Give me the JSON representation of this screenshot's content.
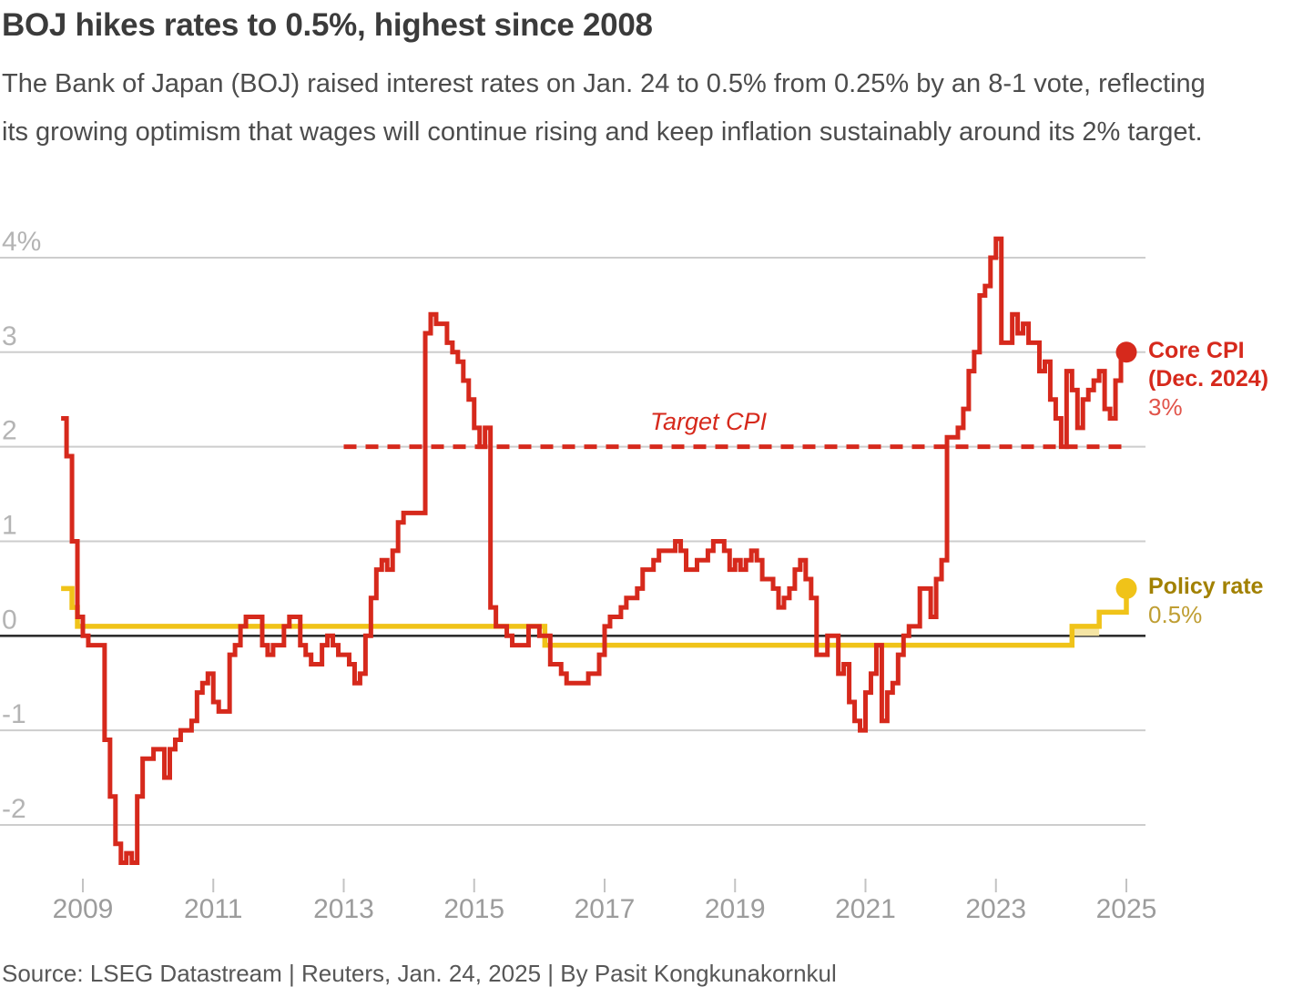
{
  "page": {
    "title": "BOJ hikes rates to 0.5%, highest since 2008",
    "subtitle": "The Bank of Japan (BOJ) raised interest rates on Jan. 24 to 0.5% from 0.25% by an 8-1 vote, reflecting its growing optimism that wages will continue rising and keep inflation sustainably around its 2% target.",
    "source": "Source: LSEG Datastream | Reuters, Jan. 24, 2025 | By Pasit Kongkunakornkul"
  },
  "annotations": {
    "target": {
      "label": "Target CPI"
    },
    "core_cpi": {
      "line1": "Core CPI",
      "line2": "(Dec. 2024)",
      "value": "3%"
    },
    "policy": {
      "line1": "Policy rate",
      "value": "0.5%"
    }
  },
  "colors": {
    "cpi_red": "#d6291c",
    "cpi_red_light": "#e15349",
    "policy_yellow": "#f0c319",
    "policy_band": "#f5e5a4",
    "gold_dark": "#a28100",
    "gold_light": "#bf9e33",
    "grid_line": "#cdcdcd",
    "zero_line": "#2e2e2e",
    "axis_label": "#b4b4b4",
    "x_axis_label": "#9c9c9c",
    "tick_mark": "#c3c3c3"
  },
  "chart_data": {
    "type": "line",
    "title": "BOJ hikes rates to 0.5%, highest since 2008",
    "ylabel": "percent",
    "ylim": [
      -2.6,
      4.3
    ],
    "grid": true,
    "legend_position": "end-of-line annotations",
    "x_axis": {
      "ticks": [
        2009,
        2011,
        2013,
        2015,
        2017,
        2019,
        2021,
        2023,
        2025
      ]
    },
    "y_axis": {
      "ticks": [
        {
          "label": "4%",
          "v": 4
        },
        {
          "label": "3",
          "v": 3
        },
        {
          "label": "2",
          "v": 2
        },
        {
          "label": "1",
          "v": 1
        },
        {
          "label": "0",
          "v": 0
        },
        {
          "label": "-1",
          "v": -1
        },
        {
          "label": "-2",
          "v": -2
        }
      ]
    },
    "target_line": {
      "label": "Target CPI",
      "value": 2,
      "from": "2013-01",
      "to_x_extent": "right edge of plot",
      "style": "dashed"
    },
    "series": [
      {
        "name": "Core CPI",
        "color_key": "cpi_red",
        "kind": "monthly-step",
        "start": "2008-09",
        "end": "2024-12",
        "end_value": 3.0,
        "end_label": "Core CPI (Dec. 2024) 3%",
        "values_by_year": {
          "2008": [
            2.3,
            1.9,
            1.0,
            0.2
          ],
          "2009": [
            0.0,
            -0.1,
            -0.1,
            -0.1,
            -1.1,
            -1.7,
            -2.2,
            -2.4,
            -2.3,
            -2.4,
            -1.7,
            -1.3
          ],
          "2010": [
            -1.3,
            -1.2,
            -1.2,
            -1.5,
            -1.2,
            -1.1,
            -1.0,
            -1.0,
            -0.9,
            -0.6,
            -0.5,
            -0.4
          ],
          "2011": [
            -0.7,
            -0.8,
            -0.8,
            -0.2,
            -0.1,
            0.1,
            0.2,
            0.2,
            0.2,
            -0.1,
            -0.2,
            -0.1
          ],
          "2012": [
            -0.1,
            0.1,
            0.2,
            0.2,
            -0.1,
            -0.2,
            -0.3,
            -0.3,
            -0.1,
            0.0,
            -0.1,
            -0.2
          ],
          "2013": [
            -0.2,
            -0.3,
            -0.5,
            -0.4,
            0.0,
            0.4,
            0.7,
            0.8,
            0.7,
            0.9,
            1.2,
            1.3
          ],
          "2014": [
            1.3,
            1.3,
            1.3,
            3.2,
            3.4,
            3.3,
            3.3,
            3.1,
            3.0,
            2.9,
            2.7,
            2.5
          ],
          "2015": [
            2.2,
            2.0,
            2.2,
            0.3,
            0.1,
            0.1,
            0.0,
            -0.1,
            -0.1,
            -0.1,
            0.1,
            0.1
          ],
          "2016": [
            0.0,
            0.0,
            -0.3,
            -0.3,
            -0.4,
            -0.5,
            -0.5,
            -0.5,
            -0.5,
            -0.4,
            -0.4,
            -0.2
          ],
          "2017": [
            0.1,
            0.2,
            0.2,
            0.3,
            0.4,
            0.4,
            0.5,
            0.7,
            0.7,
            0.8,
            0.9,
            0.9
          ],
          "2018": [
            0.9,
            1.0,
            0.9,
            0.7,
            0.7,
            0.8,
            0.8,
            0.9,
            1.0,
            1.0,
            0.9,
            0.7
          ],
          "2019": [
            0.8,
            0.7,
            0.8,
            0.9,
            0.8,
            0.6,
            0.6,
            0.5,
            0.3,
            0.4,
            0.5,
            0.7
          ],
          "2020": [
            0.8,
            0.6,
            0.4,
            -0.2,
            -0.2,
            0.0,
            0.0,
            -0.4,
            -0.3,
            -0.7,
            -0.9,
            -1.0
          ],
          "2021": [
            -0.6,
            -0.4,
            -0.1,
            -0.9,
            -0.6,
            -0.5,
            -0.2,
            0.0,
            0.1,
            0.1,
            0.5,
            0.5
          ],
          "2022": [
            0.2,
            0.6,
            0.8,
            2.1,
            2.1,
            2.2,
            2.4,
            2.8,
            3.0,
            3.6,
            3.7,
            4.0
          ],
          "2023": [
            4.2,
            3.1,
            3.1,
            3.4,
            3.2,
            3.3,
            3.1,
            3.1,
            2.8,
            2.9,
            2.5,
            2.3
          ],
          "2024": [
            2.0,
            2.8,
            2.6,
            2.2,
            2.5,
            2.6,
            2.7,
            2.8,
            2.4,
            2.3,
            2.7,
            3.0
          ]
        }
      },
      {
        "name": "Policy rate",
        "color_key": "policy_yellow",
        "kind": "step-segments",
        "end_label": "Policy rate 0.5%",
        "segments": [
          {
            "date": "2008-09",
            "rate": 0.5
          },
          {
            "date": "2008-11",
            "rate": 0.3
          },
          {
            "date": "2008-12",
            "rate": 0.1
          },
          {
            "date": "2016-02",
            "rate": -0.1
          },
          {
            "date": "2024-03",
            "rate": 0.1
          },
          {
            "date": "2024-08",
            "rate": 0.25
          },
          {
            "date": "2025-01",
            "rate": 0.5
          }
        ],
        "range_band": {
          "from": "2024-03",
          "to": "2024-08",
          "low": 0,
          "high": 0.1
        }
      }
    ]
  }
}
